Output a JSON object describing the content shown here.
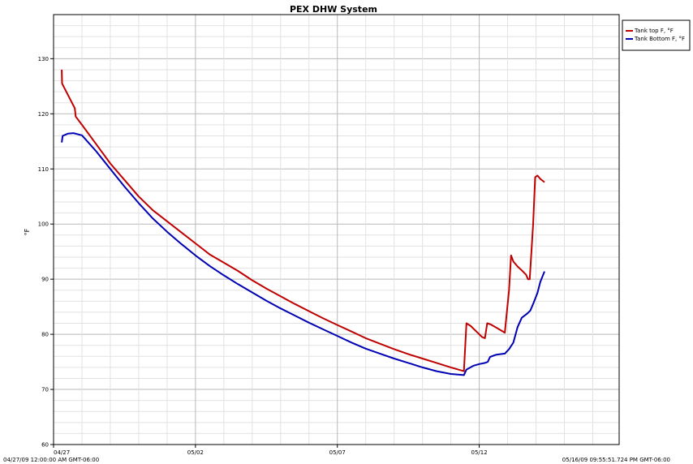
{
  "chart_data": {
    "type": "line",
    "title": "PEX DHW System",
    "ylabel": "°F",
    "xlabel": "",
    "ylim": [
      60,
      138
    ],
    "yticks": [
      60,
      70,
      80,
      90,
      100,
      110,
      120,
      130
    ],
    "xlim": [
      "04/27",
      "05/16"
    ],
    "xticks": [
      {
        "label": "04/27",
        "day": 0
      },
      {
        "label": "05/02",
        "day": 5
      },
      {
        "label": "05/07",
        "day": 10
      },
      {
        "label": "05/12",
        "day": 15
      }
    ],
    "x_start_label": "04/27/09 12:00:00 AM GMT-06:00",
    "x_end_label": "05/16/09 09:55:51.724 PM GMT-06:00",
    "grid": true,
    "legend_position": "top-right",
    "series": [
      {
        "name": "Tank top F, °F",
        "color": "#c00000",
        "points": [
          [
            0.29,
            128
          ],
          [
            0.3,
            125.5
          ],
          [
            0.45,
            124
          ],
          [
            0.65,
            122
          ],
          [
            0.75,
            121
          ],
          [
            0.78,
            119.5
          ],
          [
            1.0,
            118
          ],
          [
            1.5,
            114.5
          ],
          [
            2.0,
            111
          ],
          [
            2.5,
            108
          ],
          [
            3.0,
            105
          ],
          [
            3.5,
            102.5
          ],
          [
            4.0,
            100.5
          ],
          [
            4.5,
            98.5
          ],
          [
            5.0,
            96.5
          ],
          [
            5.5,
            94.5
          ],
          [
            6.0,
            93
          ],
          [
            6.5,
            91.5
          ],
          [
            7.0,
            89.8
          ],
          [
            7.5,
            88.3
          ],
          [
            8.0,
            86.9
          ],
          [
            8.5,
            85.5
          ],
          [
            9.0,
            84.2
          ],
          [
            9.5,
            82.9
          ],
          [
            10.0,
            81.7
          ],
          [
            10.5,
            80.5
          ],
          [
            11.0,
            79.3
          ],
          [
            11.5,
            78.3
          ],
          [
            12.0,
            77.3
          ],
          [
            12.5,
            76.4
          ],
          [
            13.0,
            75.6
          ],
          [
            13.5,
            74.8
          ],
          [
            14.0,
            74.0
          ],
          [
            14.46,
            73.3
          ],
          [
            14.55,
            82
          ],
          [
            14.7,
            81.5
          ],
          [
            14.9,
            80.5
          ],
          [
            15.1,
            79.5
          ],
          [
            15.2,
            79.3
          ],
          [
            15.28,
            82
          ],
          [
            15.4,
            81.8
          ],
          [
            15.6,
            81.2
          ],
          [
            15.8,
            80.6
          ],
          [
            15.9,
            80.3
          ],
          [
            16.05,
            88
          ],
          [
            16.12,
            94.3
          ],
          [
            16.2,
            93.2
          ],
          [
            16.35,
            92.3
          ],
          [
            16.5,
            91.6
          ],
          [
            16.65,
            90.8
          ],
          [
            16.72,
            90
          ],
          [
            16.78,
            90
          ],
          [
            16.9,
            100
          ],
          [
            16.97,
            108.5
          ],
          [
            17.05,
            108.8
          ],
          [
            17.15,
            108.2
          ],
          [
            17.3,
            107.6
          ]
        ]
      },
      {
        "name": "Tank Bottom F, °F",
        "color": "#0000b4",
        "points": [
          [
            0.29,
            114.8
          ],
          [
            0.32,
            116.0
          ],
          [
            0.5,
            116.4
          ],
          [
            0.7,
            116.5
          ],
          [
            1.0,
            116.1
          ],
          [
            1.5,
            113.2
          ],
          [
            2.0,
            110
          ],
          [
            2.5,
            106.8
          ],
          [
            3.0,
            103.8
          ],
          [
            3.5,
            101
          ],
          [
            4.0,
            98.6
          ],
          [
            4.5,
            96.4
          ],
          [
            5.0,
            94.3
          ],
          [
            5.5,
            92.4
          ],
          [
            6.0,
            90.7
          ],
          [
            6.5,
            89.1
          ],
          [
            7.0,
            87.6
          ],
          [
            7.5,
            86.1
          ],
          [
            8.0,
            84.7
          ],
          [
            8.5,
            83.4
          ],
          [
            9.0,
            82.1
          ],
          [
            9.5,
            80.9
          ],
          [
            10.0,
            79.7
          ],
          [
            10.5,
            78.5
          ],
          [
            11.0,
            77.4
          ],
          [
            11.5,
            76.5
          ],
          [
            12.0,
            75.6
          ],
          [
            12.5,
            74.8
          ],
          [
            13.0,
            74.0
          ],
          [
            13.5,
            73.3
          ],
          [
            14.0,
            72.8
          ],
          [
            14.46,
            72.6
          ],
          [
            14.55,
            73.6
          ],
          [
            14.8,
            74.3
          ],
          [
            15.0,
            74.6
          ],
          [
            15.2,
            74.8
          ],
          [
            15.3,
            75.0
          ],
          [
            15.38,
            75.9
          ],
          [
            15.6,
            76.3
          ],
          [
            15.9,
            76.5
          ],
          [
            16.05,
            77.3
          ],
          [
            16.2,
            78.5
          ],
          [
            16.35,
            81.3
          ],
          [
            16.5,
            83.0
          ],
          [
            16.7,
            83.8
          ],
          [
            16.8,
            84.3
          ],
          [
            16.9,
            85.5
          ],
          [
            17.05,
            87.5
          ],
          [
            17.15,
            89.5
          ],
          [
            17.3,
            91.4
          ]
        ]
      }
    ]
  }
}
